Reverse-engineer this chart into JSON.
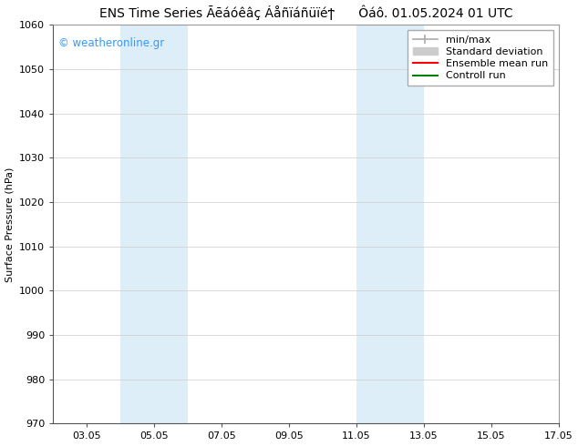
{
  "title": "ENS Time Series Āēáóêâç Áåñïáñüïéϯ      Ôáô. 01.05.2024 01 UTC",
  "ylabel": "Surface Pressure (hPa)",
  "ylim": [
    970,
    1060
  ],
  "ytick_step": 10,
  "x_min": 2,
  "x_max": 17,
  "xtick_positions": [
    3,
    5,
    7,
    9,
    11,
    13,
    15,
    17
  ],
  "xtick_labels": [
    "03.05",
    "05.05",
    "07.05",
    "09.05",
    "11.05",
    "13.05",
    "15.05",
    "17.05"
  ],
  "shaded_bands": [
    {
      "x_start": 4.0,
      "x_end": 6.0
    },
    {
      "x_start": 11.0,
      "x_end": 13.0
    }
  ],
  "shade_color": "#ddeef8",
  "watermark": "© weatheronline.gr",
  "watermark_color": "#3399ff",
  "legend_entries": [
    {
      "label": "min/max",
      "color": "#aaaaaa",
      "lw": 1.2
    },
    {
      "label": "Standard deviation",
      "color": "#cccccc",
      "lw": 8
    },
    {
      "label": "Ensemble mean run",
      "color": "red",
      "lw": 1.5
    },
    {
      "label": "Controll run",
      "color": "green",
      "lw": 1.5
    }
  ],
  "background_color": "#ffffff",
  "plot_bg_color": "#ffffff",
  "grid_color": "#cccccc",
  "tick_label_fontsize": 8,
  "axis_label_fontsize": 8,
  "title_fontsize": 10,
  "legend_fontsize": 8
}
